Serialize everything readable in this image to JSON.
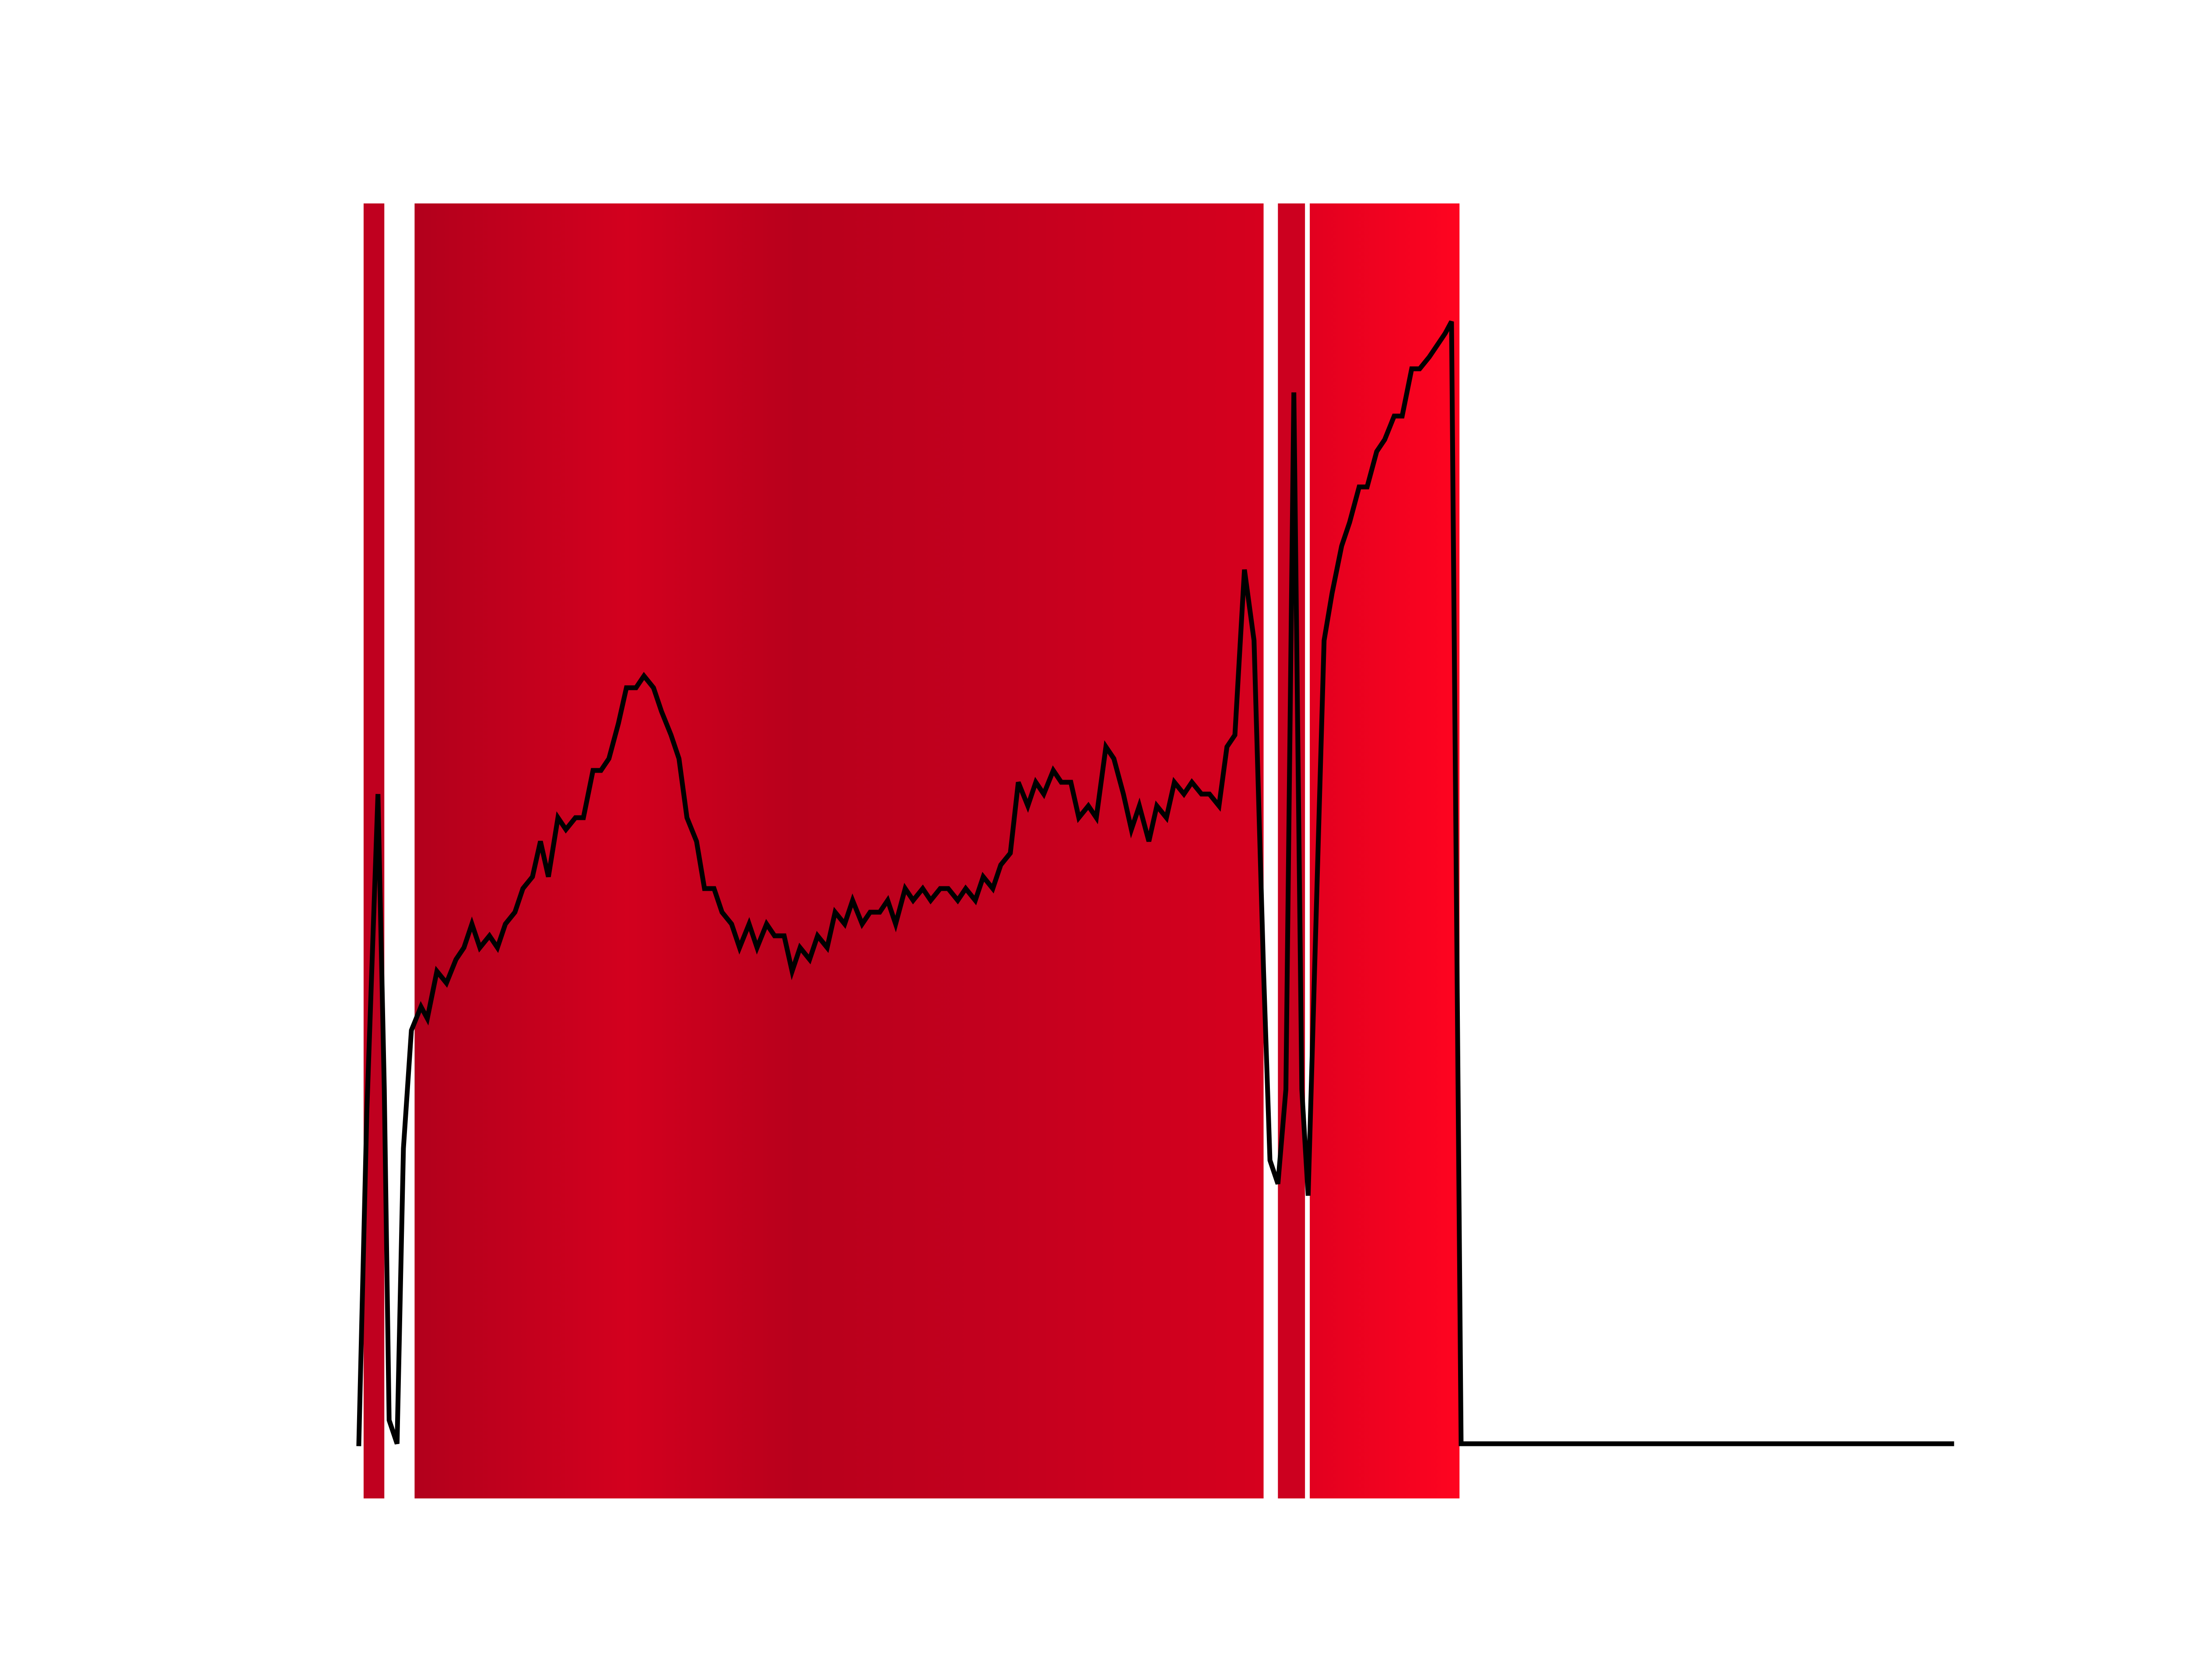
{
  "chart_data": {
    "type": "line",
    "title": "",
    "xlabel": "",
    "ylabel": "",
    "grid": false,
    "legend": "none",
    "xlim": [
      0,
      1
    ],
    "ylim": [
      0,
      1
    ],
    "colors": {
      "line": "#000000",
      "background": "#ffffff"
    },
    "bands": [
      {
        "start": 0.003,
        "end": 0.016,
        "color": "#c0001f"
      },
      {
        "start": 0.035,
        "end": 0.568,
        "stops": [
          {
            "pos": 0.0,
            "color": "#b2001c"
          },
          {
            "pos": 0.25,
            "color": "#d3001e"
          },
          {
            "pos": 0.45,
            "color": "#b8001c"
          },
          {
            "pos": 0.7,
            "color": "#c4001e"
          },
          {
            "pos": 1.0,
            "color": "#d6001e"
          }
        ]
      },
      {
        "start": 0.577,
        "end": 0.594,
        "color": "#cc001f"
      },
      {
        "start": 0.597,
        "end": 0.691,
        "stops": [
          {
            "pos": 0.0,
            "color": "#e2001f"
          },
          {
            "pos": 1.0,
            "color": "#ff0420"
          }
        ]
      }
    ],
    "series": [
      {
        "values": [
          [
            0.0,
            0.0
          ],
          [
            0.005,
            0.28
          ],
          [
            0.012,
            0.55
          ],
          [
            0.016,
            0.3
          ],
          [
            0.019,
            0.02
          ],
          [
            0.024,
            0.0
          ],
          [
            0.028,
            0.25
          ],
          [
            0.033,
            0.35
          ],
          [
            0.039,
            0.37
          ],
          [
            0.043,
            0.36
          ],
          [
            0.049,
            0.4
          ],
          [
            0.055,
            0.39
          ],
          [
            0.061,
            0.41
          ],
          [
            0.066,
            0.42
          ],
          [
            0.071,
            0.44
          ],
          [
            0.076,
            0.42
          ],
          [
            0.082,
            0.43
          ],
          [
            0.087,
            0.42
          ],
          [
            0.092,
            0.44
          ],
          [
            0.098,
            0.45
          ],
          [
            0.103,
            0.47
          ],
          [
            0.109,
            0.48
          ],
          [
            0.114,
            0.51
          ],
          [
            0.119,
            0.48
          ],
          [
            0.125,
            0.53
          ],
          [
            0.13,
            0.52
          ],
          [
            0.136,
            0.53
          ],
          [
            0.141,
            0.53
          ],
          [
            0.147,
            0.57
          ],
          [
            0.152,
            0.57
          ],
          [
            0.157,
            0.58
          ],
          [
            0.163,
            0.61
          ],
          [
            0.168,
            0.64
          ],
          [
            0.174,
            0.64
          ],
          [
            0.179,
            0.65
          ],
          [
            0.185,
            0.64
          ],
          [
            0.19,
            0.62
          ],
          [
            0.196,
            0.6
          ],
          [
            0.201,
            0.58
          ],
          [
            0.206,
            0.53
          ],
          [
            0.212,
            0.51
          ],
          [
            0.217,
            0.47
          ],
          [
            0.223,
            0.47
          ],
          [
            0.228,
            0.45
          ],
          [
            0.234,
            0.44
          ],
          [
            0.239,
            0.42
          ],
          [
            0.245,
            0.44
          ],
          [
            0.25,
            0.42
          ],
          [
            0.256,
            0.44
          ],
          [
            0.261,
            0.43
          ],
          [
            0.267,
            0.43
          ],
          [
            0.272,
            0.4
          ],
          [
            0.277,
            0.42
          ],
          [
            0.283,
            0.41
          ],
          [
            0.288,
            0.43
          ],
          [
            0.294,
            0.42
          ],
          [
            0.299,
            0.45
          ],
          [
            0.305,
            0.44
          ],
          [
            0.31,
            0.46
          ],
          [
            0.316,
            0.44
          ],
          [
            0.321,
            0.45
          ],
          [
            0.327,
            0.45
          ],
          [
            0.332,
            0.46
          ],
          [
            0.337,
            0.44
          ],
          [
            0.343,
            0.47
          ],
          [
            0.348,
            0.46
          ],
          [
            0.354,
            0.47
          ],
          [
            0.359,
            0.46
          ],
          [
            0.365,
            0.47
          ],
          [
            0.37,
            0.47
          ],
          [
            0.376,
            0.46
          ],
          [
            0.381,
            0.47
          ],
          [
            0.387,
            0.46
          ],
          [
            0.392,
            0.48
          ],
          [
            0.398,
            0.47
          ],
          [
            0.403,
            0.49
          ],
          [
            0.409,
            0.5
          ],
          [
            0.414,
            0.56
          ],
          [
            0.42,
            0.54
          ],
          [
            0.425,
            0.56
          ],
          [
            0.43,
            0.55
          ],
          [
            0.436,
            0.57
          ],
          [
            0.441,
            0.56
          ],
          [
            0.447,
            0.56
          ],
          [
            0.452,
            0.53
          ],
          [
            0.458,
            0.54
          ],
          [
            0.463,
            0.53
          ],
          [
            0.469,
            0.59
          ],
          [
            0.474,
            0.58
          ],
          [
            0.48,
            0.55
          ],
          [
            0.485,
            0.52
          ],
          [
            0.49,
            0.54
          ],
          [
            0.496,
            0.51
          ],
          [
            0.501,
            0.54
          ],
          [
            0.507,
            0.53
          ],
          [
            0.512,
            0.56
          ],
          [
            0.518,
            0.55
          ],
          [
            0.523,
            0.56
          ],
          [
            0.529,
            0.55
          ],
          [
            0.534,
            0.55
          ],
          [
            0.54,
            0.54
          ],
          [
            0.545,
            0.59
          ],
          [
            0.55,
            0.6
          ],
          [
            0.556,
            0.74
          ],
          [
            0.562,
            0.68
          ],
          [
            0.568,
            0.4
          ],
          [
            0.572,
            0.24
          ],
          [
            0.577,
            0.22
          ],
          [
            0.582,
            0.3
          ],
          [
            0.587,
            0.89
          ],
          [
            0.592,
            0.3
          ],
          [
            0.596,
            0.21
          ],
          [
            0.6,
            0.4
          ],
          [
            0.606,
            0.68
          ],
          [
            0.611,
            0.72
          ],
          [
            0.617,
            0.76
          ],
          [
            0.622,
            0.78
          ],
          [
            0.628,
            0.81
          ],
          [
            0.633,
            0.81
          ],
          [
            0.639,
            0.84
          ],
          [
            0.644,
            0.85
          ],
          [
            0.65,
            0.87
          ],
          [
            0.655,
            0.87
          ],
          [
            0.661,
            0.91
          ],
          [
            0.666,
            0.91
          ],
          [
            0.672,
            0.92
          ],
          [
            0.677,
            0.93
          ],
          [
            0.682,
            0.94
          ],
          [
            0.686,
            0.95
          ],
          [
            0.692,
            0.0
          ],
          [
            1.0,
            0.0
          ]
        ]
      }
    ]
  }
}
